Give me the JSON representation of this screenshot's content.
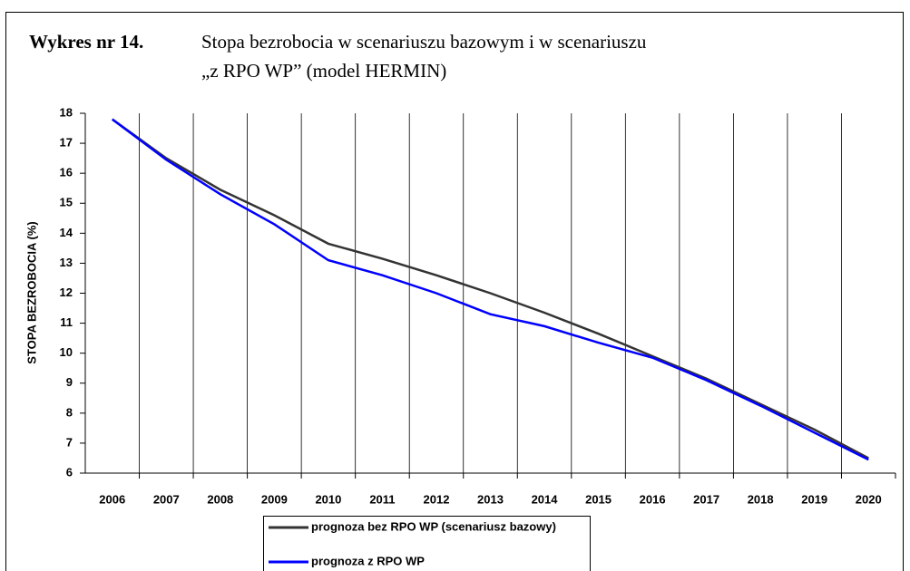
{
  "chart_data": {
    "type": "line",
    "title": "Wykres nr 14.",
    "subtitle": [
      "Stopa bezrobocia w scenariuszu bazowym i w scenariuszu",
      "„z RPO WP” (model HERMIN)"
    ],
    "y_label": "STOPA BEZROBOCIA (%)",
    "categories": [
      "2006",
      "2007",
      "2008",
      "2009",
      "2010",
      "2011",
      "2012",
      "2013",
      "2014",
      "2015",
      "2016",
      "2017",
      "2018",
      "2019",
      "2020"
    ],
    "series": [
      {
        "name": "prognoza  bez RPO WP (scenariusz bazowy)",
        "color": "#333333",
        "values": [
          17.8,
          16.5,
          15.45,
          14.6,
          13.65,
          13.15,
          12.6,
          12.0,
          11.35,
          10.65,
          9.9,
          9.15,
          8.3,
          7.45,
          6.5
        ]
      },
      {
        "name": "prognoza  z RPO WP",
        "color": "#0000ff",
        "values": [
          17.8,
          16.45,
          15.3,
          14.3,
          13.1,
          12.6,
          12.0,
          11.3,
          10.9,
          10.35,
          9.85,
          9.1,
          8.25,
          7.35,
          6.45
        ]
      }
    ],
    "ylim": [
      6,
      18
    ],
    "yticks": [
      6,
      7,
      8,
      9,
      10,
      11,
      12,
      13,
      14,
      15,
      16,
      17,
      18
    ],
    "grid": true
  }
}
